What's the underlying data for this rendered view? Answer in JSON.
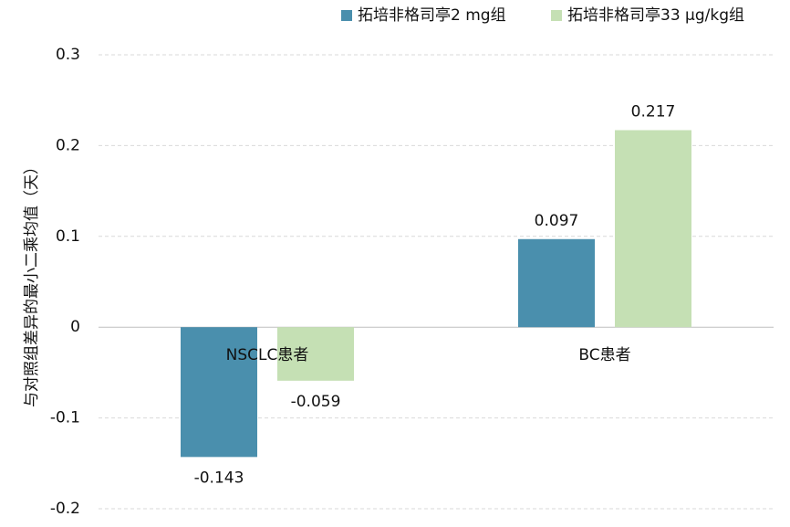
{
  "chart_data": {
    "type": "bar",
    "y_label": "与对照组差异的最小二乘均值（天）",
    "categories": [
      "NSCLC患者",
      "BC患者"
    ],
    "series": [
      {
        "name": "拓培非格司亭2 mg组",
        "color": "#4a8fad",
        "values": [
          -0.143,
          0.097
        ]
      },
      {
        "name": "拓培非格司亭33 μg/kg组",
        "color": "#c5e0b4",
        "values": [
          -0.059,
          0.217
        ]
      }
    ],
    "ylim": [
      -0.2,
      0.3
    ],
    "yticks": [
      -0.2,
      -0.1,
      0,
      0.1,
      0.2,
      0.3
    ],
    "grid": true,
    "legend": "top"
  }
}
